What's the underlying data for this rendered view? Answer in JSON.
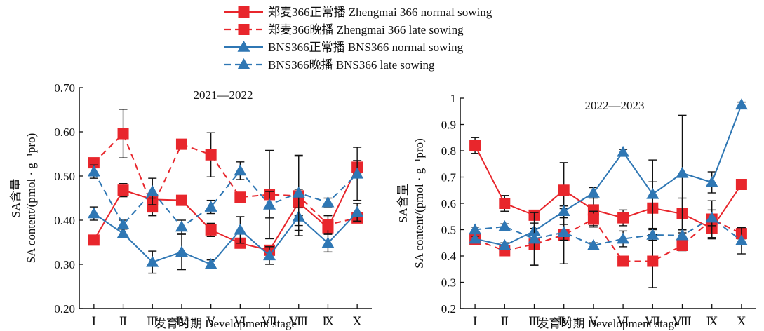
{
  "legend": [
    {
      "label": "郑麦366正常播 Zhengmai 366 normal sowing",
      "color": "#e8262c",
      "dash": false,
      "marker": "square"
    },
    {
      "label": "郑麦366晚播 Zhengmai 366 late sowing",
      "color": "#e8262c",
      "dash": true,
      "marker": "square"
    },
    {
      "label": "BNS366正常播 BNS366  normal sowing",
      "color": "#2f77b4",
      "dash": false,
      "marker": "triangle"
    },
    {
      "label": "BNS366晚播 BNS366 late sowing",
      "color": "#2f77b4",
      "dash": true,
      "marker": "triangle"
    }
  ],
  "chart_data": [
    {
      "type": "line",
      "title": "2021—2022",
      "xlabel": "发育时期 Development stage",
      "ylabel": "SA含量",
      "ylabel2": "SA content/(pmol · g⁻¹pro)",
      "categories": [
        "Ⅰ",
        "Ⅱ",
        "Ⅲ",
        "Ⅳ",
        "Ⅴ",
        "Ⅵ",
        "Ⅶ",
        "Ⅷ",
        "Ⅸ",
        "Ⅹ"
      ],
      "yticks": [
        "0.20",
        "0.30",
        "0.40",
        "0.50",
        "0.60",
        "0.70"
      ],
      "ylim": [
        0.2,
        0.7
      ],
      "series": [
        {
          "name": "郑麦366正常播 Zhengmai 366 normal sowing",
          "values": [
            0.355,
            0.468,
            0.447,
            0.445,
            0.378,
            0.348,
            0.332,
            0.44,
            0.383,
            0.52
          ],
          "errors": [
            0.01,
            0.015,
            0.01,
            0.01,
            0.015,
            0.01,
            0.01,
            0.03,
            0.01,
            0.015
          ]
        },
        {
          "name": "郑麦366晚播 Zhengmai 366 late sowing",
          "values": [
            0.53,
            0.596,
            0.43,
            0.572,
            0.548,
            0.452,
            0.458,
            0.455,
            0.39,
            0.405
          ],
          "errors": [
            0.01,
            0.055,
            0.02,
            0.01,
            0.05,
            0.01,
            0.1,
            0.09,
            0.02,
            0.01
          ]
        },
        {
          "name": "BNS366正常播 BNS366  normal sowing",
          "values": [
            0.415,
            0.37,
            0.305,
            0.328,
            0.3,
            0.378,
            0.32,
            0.408,
            0.348,
            0.418
          ],
          "errors": [
            0.015,
            0.01,
            0.025,
            0.04,
            0.01,
            0.03,
            0.02,
            0.02,
            0.02,
            0.02
          ]
        },
        {
          "name": "BNS366晚播 BNS366 late sowing",
          "values": [
            0.51,
            0.39,
            0.465,
            0.385,
            0.43,
            0.512,
            0.435,
            0.462,
            0.44,
            0.505
          ],
          "errors": [
            0.015,
            0.01,
            0.03,
            0.015,
            0.015,
            0.02,
            0.03,
            0.085,
            0.01,
            0.06
          ]
        }
      ]
    },
    {
      "type": "line",
      "title": "2022—2023",
      "xlabel": "发育时期 Development stage",
      "ylabel": "SA含量",
      "ylabel2": "SA content/(pmol · g⁻¹pro)",
      "categories": [
        "Ⅰ",
        "Ⅱ",
        "Ⅲ",
        "Ⅳ",
        "Ⅴ",
        "Ⅵ",
        "Ⅶ",
        "Ⅷ",
        "Ⅸ",
        "Ⅹ"
      ],
      "yticks": [
        "0.2",
        "0.3",
        "0.4",
        "0.5",
        "0.6",
        "0.7",
        "0.8",
        "0.9",
        "1"
      ],
      "ylim": [
        0.2,
        1.0
      ],
      "series": [
        {
          "name": "郑麦366正常播 Zhengmai 366 normal sowing",
          "values": [
            0.82,
            0.6,
            0.555,
            0.65,
            0.575,
            0.545,
            0.582,
            0.56,
            0.505,
            0.672
          ],
          "errors": [
            0.03,
            0.03,
            0.01,
            0.105,
            0.06,
            0.03,
            0.1,
            0.06,
            0.04,
            0.01
          ]
        },
        {
          "name": "郑麦366晚播 Zhengmai 366 late sowing",
          "values": [
            0.462,
            0.42,
            0.445,
            0.48,
            0.54,
            0.38,
            0.38,
            0.44,
            0.54,
            0.485
          ],
          "errors": [
            0.015,
            0.01,
            0.08,
            0.11,
            0.03,
            0.01,
            0.1,
            0.02,
            0.07,
            0.02
          ]
        },
        {
          "name": "BNS366正常播 BNS366  normal sowing",
          "values": [
            0.465,
            0.44,
            0.495,
            0.57,
            0.64,
            0.795,
            0.635,
            0.715,
            0.68,
            0.975
          ],
          "errors": [
            0.01,
            0.01,
            0.01,
            0.01,
            0.02,
            0.01,
            0.13,
            0.22,
            0.04,
            0.01
          ]
        },
        {
          "name": "BNS366晚播 BNS366 late sowing",
          "values": [
            0.5,
            0.512,
            0.465,
            0.49,
            0.44,
            0.465,
            0.48,
            0.478,
            0.545,
            0.458
          ],
          "errors": [
            0.01,
            0.01,
            0.1,
            0.03,
            0.01,
            0.03,
            0.02,
            0.01,
            0.03,
            0.05
          ]
        }
      ]
    }
  ]
}
